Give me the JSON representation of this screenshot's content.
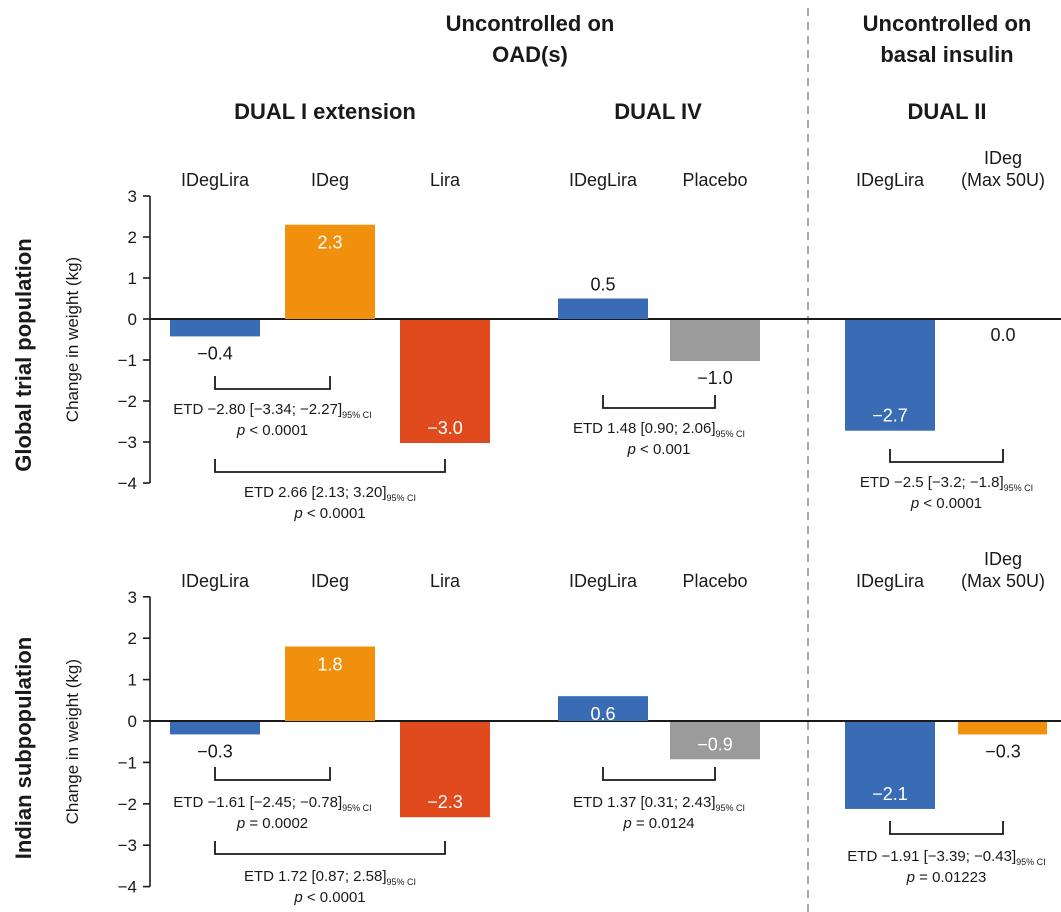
{
  "headers": {
    "group_oad": [
      "Uncontrolled on",
      "OAD(s)"
    ],
    "group_basal": [
      "Uncontrolled on",
      "basal insulin"
    ],
    "trial_dual1": "DUAL I extension",
    "trial_dual4": "DUAL IV",
    "trial_dual2": "DUAL II"
  },
  "colors": {
    "idegira": "#3a6cb5",
    "ideg": "#f0900c",
    "lira": "#e04a1c",
    "placebo": "#9b9b9b",
    "divider": "#a8a8a8",
    "axis": "#1a1a1a"
  },
  "chart_data": [
    {
      "type": "bar",
      "name": "Global trial population",
      "ylabel": "Change in weight (kg)",
      "ylim": [
        -4,
        3
      ],
      "yticks": [
        "3",
        "2",
        "1",
        "0",
        "−1",
        "−2",
        "−3",
        "−4"
      ],
      "categories": [
        {
          "label": "IDegLira",
          "value": -0.4,
          "value_label": "−0.4",
          "color_key": "idegira"
        },
        {
          "label": "IDeg",
          "value": 2.3,
          "value_label": "2.3",
          "color_key": "ideg"
        },
        {
          "label": "Lira",
          "value": -3.0,
          "value_label": "−3.0",
          "color_key": "lira"
        },
        {
          "label": "IDegLira",
          "value": 0.5,
          "value_label": "0.5",
          "color_key": "idegira"
        },
        {
          "label": "Placebo",
          "value": -1.0,
          "value_label": "−1.0",
          "color_key": "placebo"
        },
        {
          "label": "IDegLira",
          "value": -2.7,
          "value_label": "−2.7",
          "color_key": "idegira"
        },
        {
          "label": [
            "IDeg",
            "(Max 50U)"
          ],
          "value": 0.0,
          "value_label": "0.0",
          "color_key": "ideg"
        }
      ],
      "comparisons": [
        {
          "from": 0,
          "to": 1,
          "etd": "ETD −2.80 [−3.34; −2.27]",
          "ci": "95% CI",
          "p": "< 0.0001"
        },
        {
          "from": 0,
          "to": 2,
          "etd": "ETD 2.66 [2.13; 3.20]",
          "ci": "95% CI",
          "p": "< 0.0001"
        },
        {
          "from": 3,
          "to": 4,
          "etd": "ETD 1.48 [0.90; 2.06]",
          "ci": "95% CI",
          "p": "< 0.001"
        },
        {
          "from": 5,
          "to": 6,
          "etd": "ETD −2.5 [−3.2; −1.8]",
          "ci": "95% CI",
          "p": "< 0.0001"
        }
      ]
    },
    {
      "type": "bar",
      "name": "Indian subpopulation",
      "ylabel": "Change in weight (kg)",
      "ylim": [
        -4,
        3
      ],
      "yticks": [
        "3",
        "2",
        "1",
        "0",
        "−1",
        "−2",
        "−3",
        "−4"
      ],
      "categories": [
        {
          "label": "IDegLira",
          "value": -0.3,
          "value_label": "−0.3",
          "color_key": "idegira"
        },
        {
          "label": "IDeg",
          "value": 1.8,
          "value_label": "1.8",
          "color_key": "ideg"
        },
        {
          "label": "Lira",
          "value": -2.3,
          "value_label": "−2.3",
          "color_key": "lira"
        },
        {
          "label": "IDegLira",
          "value": 0.6,
          "value_label": "0.6",
          "color_key": "idegira"
        },
        {
          "label": "Placebo",
          "value": -0.9,
          "value_label": "−0.9",
          "color_key": "placebo"
        },
        {
          "label": "IDegLira",
          "value": -2.1,
          "value_label": "−2.1",
          "color_key": "idegira"
        },
        {
          "label": [
            "IDeg",
            "(Max 50U)"
          ],
          "value": -0.3,
          "value_label": "−0.3",
          "color_key": "ideg"
        }
      ],
      "comparisons": [
        {
          "from": 0,
          "to": 1,
          "etd": "ETD −1.61 [−2.45; −0.78]",
          "ci": "95% CI",
          "p": "= 0.0002"
        },
        {
          "from": 0,
          "to": 2,
          "etd": "ETD 1.72 [0.87; 2.58]",
          "ci": "95% CI",
          "p": "< 0.0001"
        },
        {
          "from": 3,
          "to": 4,
          "etd": "ETD 1.37 [0.31; 2.43]",
          "ci": "95% CI",
          "p": "= 0.0124"
        },
        {
          "from": 5,
          "to": 6,
          "etd": "ETD −1.91 [−3.39; −0.43]",
          "ci": "95% CI",
          "p": "= 0.01223"
        }
      ]
    }
  ]
}
